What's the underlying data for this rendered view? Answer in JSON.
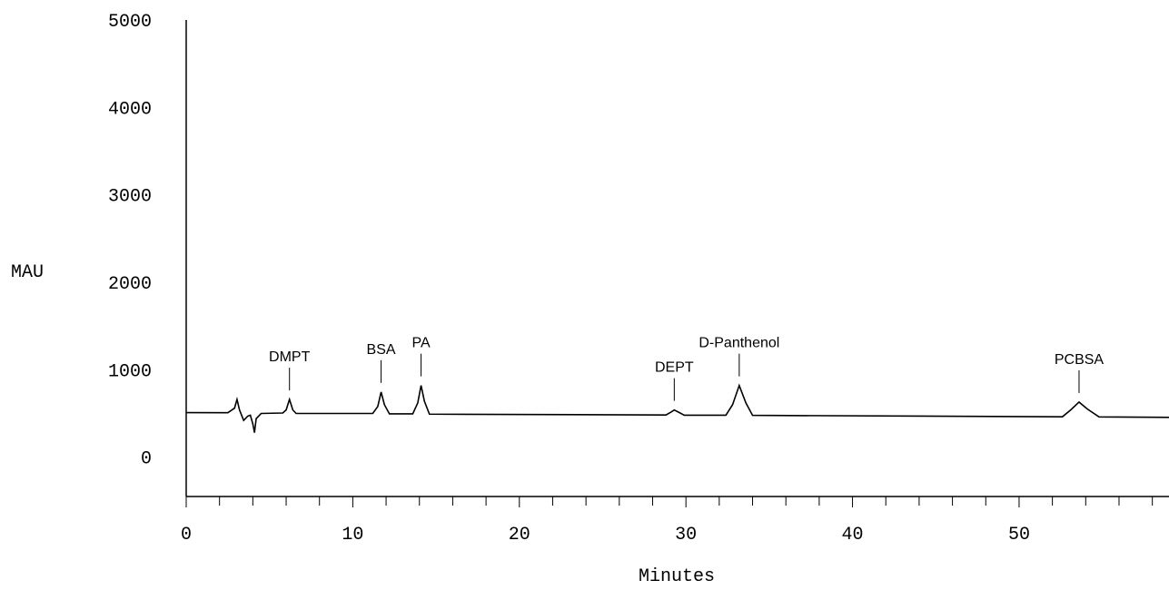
{
  "chart_data": {
    "type": "line",
    "y_label": "MAU",
    "x_label": "Minutes",
    "xlim": [
      0,
      59
    ],
    "ylim": [
      -450,
      5000
    ],
    "xticks": [
      0,
      10,
      20,
      30,
      40,
      50
    ],
    "xminorticks": [
      2,
      4,
      6,
      8,
      12,
      14,
      16,
      18,
      22,
      24,
      26,
      28,
      32,
      34,
      36,
      38,
      42,
      44,
      46,
      48,
      52,
      54,
      56,
      58
    ],
    "yticks": [
      0,
      1000,
      2000,
      3000,
      4000,
      5000
    ],
    "grid": false,
    "series": [
      {
        "color": "#000000",
        "x": [
          0,
          2.5,
          2.9,
          3.05,
          3.2,
          3.45,
          3.7,
          3.85,
          4.0,
          4.1,
          4.2,
          4.5,
          5.8,
          6.0,
          6.2,
          6.4,
          6.6,
          11.2,
          11.5,
          11.7,
          11.9,
          12.2,
          13.6,
          13.9,
          14.1,
          14.3,
          14.6,
          28.8,
          29.1,
          29.3,
          29.6,
          29.9,
          32.4,
          32.8,
          33.2,
          33.6,
          34.0,
          52.6,
          53.1,
          53.6,
          54.1,
          54.8,
          59
        ],
        "values": [
          510,
          508,
          560,
          660,
          540,
          420,
          470,
          480,
          380,
          280,
          440,
          500,
          505,
          540,
          660,
          540,
          500,
          500,
          580,
          745,
          600,
          495,
          495,
          620,
          820,
          640,
          492,
          482,
          515,
          540,
          510,
          480,
          480,
          600,
          820,
          620,
          478,
          462,
          540,
          630,
          550,
          460,
          455
        ]
      }
    ],
    "annotations": [
      {
        "text": "DMPT",
        "x": 6.2
      },
      {
        "text": "BSA",
        "x": 11.7
      },
      {
        "text": "PA",
        "x": 14.1
      },
      {
        "text": "DEPT",
        "x": 29.3
      },
      {
        "text": "D-Panthenol",
        "x": 33.2
      },
      {
        "text": "PCBSA",
        "x": 53.6
      }
    ]
  }
}
